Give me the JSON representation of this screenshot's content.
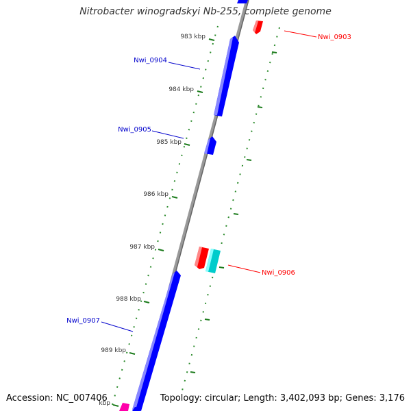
{
  "title": "Nitrobacter winogradskyi Nb-255, complete genome",
  "footer": {
    "accession": "Accession: NC_007406",
    "topology": "Topology: circular; Length: 3,402,093 bp; Genes: 3,176"
  },
  "colors": {
    "forward_cds": "#0000ff",
    "reverse_cds": "#ff0000",
    "teal_feature": "#00cccc",
    "magenta_feature": "#ff00aa",
    "tick": "#1a7a1a",
    "backbone": "#888888"
  },
  "ticks": [
    "983 kbp",
    "984 kbp",
    "985 kbp",
    "986 kbp",
    "987 kbp",
    "988 kbp",
    "989 kbp",
    "kbp"
  ],
  "genes": [
    {
      "name": "Nwi_0903",
      "color": "#ff0000"
    },
    {
      "name": "Nwi_0904",
      "color": "#0000cc"
    },
    {
      "name": "Nwi_0905",
      "color": "#0000cc"
    },
    {
      "name": "Nwi_0906",
      "color": "#ff0000"
    },
    {
      "name": "Nwi_0907",
      "color": "#0000cc"
    }
  ]
}
